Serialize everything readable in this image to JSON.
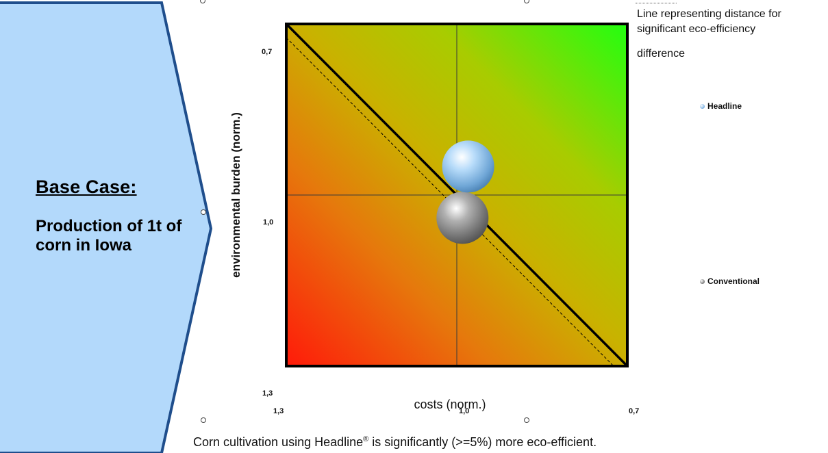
{
  "banner": {
    "title": "Base Case:",
    "description": "Production of 1t of corn in Iowa",
    "fill_color": "#b3d9fb",
    "stroke_color": "#1f4e8c"
  },
  "line_note": {
    "line1": "Line representing distance for",
    "line2": "significant eco-efficiency",
    "line3": "difference"
  },
  "legend": [
    {
      "label": "Headline",
      "color": "#8fbde8"
    },
    {
      "label": "Conventional",
      "color": "#8a8a8a"
    }
  ],
  "footnote": {
    "prefix": "Corn cultivation using Headline",
    "mark": "®",
    "suffix": " is significantly (>=5%) more eco-efficient."
  },
  "chart_data": {
    "type": "scatter",
    "title": "",
    "xlabel": "costs (norm.)",
    "ylabel": "environmental burden (norm.)",
    "xlim": [
      1.3,
      0.7
    ],
    "ylim": [
      1.3,
      0.7
    ],
    "x_ticks": [
      "1,3",
      "1,0",
      "0,7"
    ],
    "y_ticks": [
      "0,7",
      "1,0",
      "1,3"
    ],
    "reference_lines": [
      "x = 1.0",
      "y = 1.0"
    ],
    "diagonal": "significance line",
    "background": "gradient from red (bottom-left) through yellow to green (top-right)",
    "series": [
      {
        "name": "Headline",
        "x": 0.98,
        "y": 0.95,
        "color": "#9ccbf0"
      },
      {
        "name": "Conventional",
        "x": 0.99,
        "y": 1.04,
        "color": "#8a8a8a"
      }
    ],
    "grid": false,
    "legend_position": "right"
  }
}
